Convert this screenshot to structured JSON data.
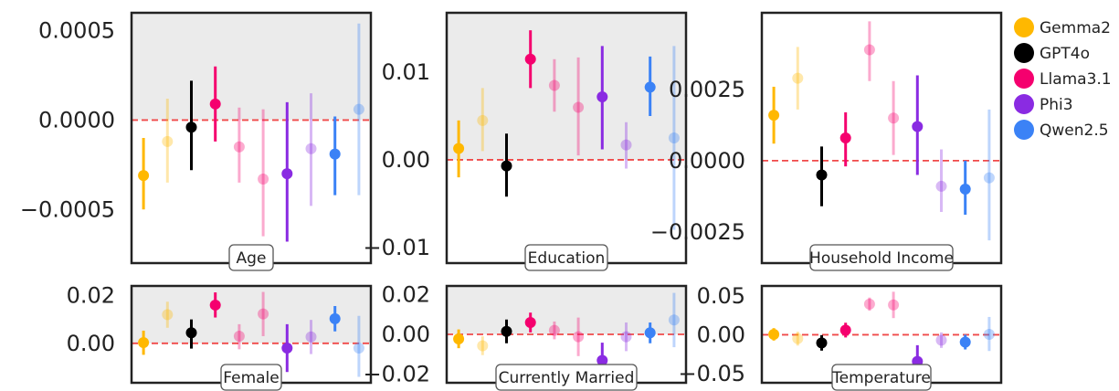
{
  "legend": [
    {
      "label": "Gemma2",
      "color": "#FFB800"
    },
    {
      "label": "GPT4o",
      "color": "#000000"
    },
    {
      "label": "Llama3.1",
      "color": "#F5006E"
    },
    {
      "label": "Phi3",
      "color": "#8A2BE2"
    },
    {
      "label": "Qwen2.5",
      "color": "#3B82F6"
    }
  ],
  "chart_data": [
    {
      "type": "scatter",
      "label": "Age",
      "ylim": [
        -0.0008,
        0.0006
      ],
      "yticks": [
        0.0005,
        0.0,
        -0.0005
      ],
      "ytick_labels": [
        "0.0005",
        "0.0000",
        "−0.0005"
      ],
      "shaded": true,
      "reference_line": 0,
      "points": [
        {
          "model": "Gemma2",
          "faded": false,
          "y": -0.00031,
          "lo": -0.0005,
          "hi": -0.0001
        },
        {
          "model": "Gemma2",
          "faded": true,
          "y": -0.00012,
          "lo": -0.00035,
          "hi": 0.00012
        },
        {
          "model": "GPT4o",
          "faded": false,
          "y": -4e-05,
          "lo": -0.00028,
          "hi": 0.00022
        },
        {
          "model": "Llama3.1",
          "faded": false,
          "y": 9e-05,
          "lo": -0.00012,
          "hi": 0.0003
        },
        {
          "model": "Llama3.1",
          "faded": true,
          "y": -0.00015,
          "lo": -0.00035,
          "hi": 7e-05
        },
        {
          "model": "Llama3.1",
          "faded": true,
          "y": -0.00033,
          "lo": -0.00065,
          "hi": 6e-05
        },
        {
          "model": "Phi3",
          "faded": false,
          "y": -0.0003,
          "lo": -0.00068,
          "hi": 0.0001
        },
        {
          "model": "Phi3",
          "faded": true,
          "y": -0.00016,
          "lo": -0.00048,
          "hi": 0.00015
        },
        {
          "model": "Qwen2.5",
          "faded": false,
          "y": -0.00019,
          "lo": -0.00042,
          "hi": 2e-05
        },
        {
          "model": "Qwen2.5",
          "faded": true,
          "y": 6e-05,
          "lo": -0.00042,
          "hi": 0.00054
        }
      ]
    },
    {
      "type": "scatter",
      "label": "Education",
      "ylim": [
        -0.0118,
        0.0168
      ],
      "yticks": [
        0.01,
        0.0,
        -0.01
      ],
      "ytick_labels": [
        "0.01",
        "0.00",
        "−0.01"
      ],
      "shaded": true,
      "reference_line": 0,
      "points": [
        {
          "model": "Gemma2",
          "faded": false,
          "y": 0.0013,
          "lo": -0.002,
          "hi": 0.0045
        },
        {
          "model": "Gemma2",
          "faded": true,
          "y": 0.0045,
          "lo": 0.001,
          "hi": 0.0082
        },
        {
          "model": "GPT4o",
          "faded": false,
          "y": -0.0007,
          "lo": -0.0042,
          "hi": 0.003
        },
        {
          "model": "Llama3.1",
          "faded": false,
          "y": 0.0115,
          "lo": 0.0082,
          "hi": 0.0148
        },
        {
          "model": "Llama3.1",
          "faded": true,
          "y": 0.0085,
          "lo": 0.0055,
          "hi": 0.0115
        },
        {
          "model": "Llama3.1",
          "faded": true,
          "y": 0.006,
          "lo": 0.0005,
          "hi": 0.0117
        },
        {
          "model": "Phi3",
          "faded": false,
          "y": 0.0072,
          "lo": 0.0012,
          "hi": 0.013
        },
        {
          "model": "Phi3",
          "faded": true,
          "y": 0.0017,
          "lo": -0.001,
          "hi": 0.0043
        },
        {
          "model": "Qwen2.5",
          "faded": false,
          "y": 0.0083,
          "lo": 0.005,
          "hi": 0.0118
        },
        {
          "model": "Qwen2.5",
          "faded": true,
          "y": 0.0025,
          "lo": -0.008,
          "hi": 0.013
        }
      ]
    },
    {
      "type": "scatter",
      "label": "Household Income",
      "ylim": [
        -0.0036,
        0.0052
      ],
      "yticks": [
        0.0025,
        0.0,
        -0.0025
      ],
      "ytick_labels": [
        "0.0025",
        "0.0000",
        "−0.0025"
      ],
      "shaded": false,
      "reference_line": 0,
      "points": [
        {
          "model": "Gemma2",
          "faded": false,
          "y": 0.0016,
          "lo": 0.0006,
          "hi": 0.0026
        },
        {
          "model": "Gemma2",
          "faded": true,
          "y": 0.0029,
          "lo": 0.0018,
          "hi": 0.004
        },
        {
          "model": "GPT4o",
          "faded": false,
          "y": -0.0005,
          "lo": -0.0016,
          "hi": 0.0005
        },
        {
          "model": "Llama3.1",
          "faded": false,
          "y": 0.0008,
          "lo": -0.0002,
          "hi": 0.0017
        },
        {
          "model": "Llama3.1",
          "faded": true,
          "y": 0.0039,
          "lo": 0.0028,
          "hi": 0.0049
        },
        {
          "model": "Llama3.1",
          "faded": true,
          "y": 0.0015,
          "lo": 0.0002,
          "hi": 0.0028
        },
        {
          "model": "Phi3",
          "faded": false,
          "y": 0.0012,
          "lo": -0.0005,
          "hi": 0.003
        },
        {
          "model": "Phi3",
          "faded": true,
          "y": -0.0009,
          "lo": -0.0018,
          "hi": 0.0004
        },
        {
          "model": "Qwen2.5",
          "faded": false,
          "y": -0.001,
          "lo": -0.0019,
          "hi": 0.0
        },
        {
          "model": "Qwen2.5",
          "faded": true,
          "y": -0.0006,
          "lo": -0.0028,
          "hi": 0.0018
        }
      ]
    },
    {
      "type": "scatter",
      "label": "Female",
      "ylim": [
        -0.0165,
        0.024
      ],
      "yticks": [
        0.02,
        0.0
      ],
      "ytick_labels": [
        "0.02",
        "0.00"
      ],
      "shaded": true,
      "reference_line": 0,
      "points": [
        {
          "model": "Gemma2",
          "faded": false,
          "y": 0.0003,
          "lo": -0.0048,
          "hi": 0.0053
        },
        {
          "model": "Gemma2",
          "faded": true,
          "y": 0.012,
          "lo": 0.0065,
          "hi": 0.0174
        },
        {
          "model": "GPT4o",
          "faded": false,
          "y": 0.0044,
          "lo": -0.0022,
          "hi": 0.01
        },
        {
          "model": "Llama3.1",
          "faded": false,
          "y": 0.016,
          "lo": 0.0108,
          "hi": 0.0213
        },
        {
          "model": "Llama3.1",
          "faded": true,
          "y": 0.003,
          "lo": -0.0025,
          "hi": 0.008
        },
        {
          "model": "Llama3.1",
          "faded": true,
          "y": 0.0123,
          "lo": 0.003,
          "hi": 0.0215
        },
        {
          "model": "Phi3",
          "faded": false,
          "y": -0.002,
          "lo": -0.012,
          "hi": 0.008
        },
        {
          "model": "Phi3",
          "faded": true,
          "y": 0.0027,
          "lo": -0.0045,
          "hi": 0.0098
        },
        {
          "model": "Qwen2.5",
          "faded": false,
          "y": 0.0103,
          "lo": 0.005,
          "hi": 0.0156
        },
        {
          "model": "Qwen2.5",
          "faded": true,
          "y": -0.002,
          "lo": -0.014,
          "hi": 0.0115
        }
      ]
    },
    {
      "type": "scatter",
      "label": "Currently Married",
      "ylim": [
        -0.0245,
        0.0245
      ],
      "yticks": [
        0.02,
        0.0,
        -0.02
      ],
      "ytick_labels": [
        "0.02",
        "0.00",
        "−0.02"
      ],
      "shaded": true,
      "reference_line": 0,
      "points": [
        {
          "model": "Gemma2",
          "faded": false,
          "y": -0.0023,
          "lo": -0.007,
          "hi": 0.0025
        },
        {
          "model": "Gemma2",
          "faded": true,
          "y": -0.0058,
          "lo": -0.0105,
          "hi": -0.001
        },
        {
          "model": "GPT4o",
          "faded": false,
          "y": 0.0015,
          "lo": -0.0045,
          "hi": 0.0075
        },
        {
          "model": "Llama3.1",
          "faded": false,
          "y": 0.006,
          "lo": 0.001,
          "hi": 0.011
        },
        {
          "model": "Llama3.1",
          "faded": true,
          "y": 0.002,
          "lo": -0.0025,
          "hi": 0.0065
        },
        {
          "model": "Llama3.1",
          "faded": true,
          "y": -0.0012,
          "lo": -0.011,
          "hi": 0.0085
        },
        {
          "model": "Phi3",
          "faded": false,
          "y": -0.0132,
          "lo": -0.0222,
          "hi": -0.0042
        },
        {
          "model": "Phi3",
          "faded": true,
          "y": -0.0012,
          "lo": -0.0085,
          "hi": 0.006
        },
        {
          "model": "Qwen2.5",
          "faded": false,
          "y": 0.0008,
          "lo": -0.0045,
          "hi": 0.006
        },
        {
          "model": "Qwen2.5",
          "faded": true,
          "y": 0.0073,
          "lo": -0.0065,
          "hi": 0.021
        }
      ]
    },
    {
      "type": "scatter",
      "label": "Temperature",
      "ylim": [
        -0.062,
        0.063
      ],
      "yticks": [
        0.05,
        0.0,
        -0.05
      ],
      "ytick_labels": [
        "0.05",
        "0.00",
        "−0.05"
      ],
      "shaded": false,
      "reference_line": 0,
      "points": [
        {
          "model": "Gemma2",
          "faded": false,
          "y": 0.0005,
          "lo": -0.0075,
          "hi": 0.0085
        },
        {
          "model": "Gemma2",
          "faded": true,
          "y": -0.005,
          "lo": -0.014,
          "hi": 0.004
        },
        {
          "model": "GPT4o",
          "faded": false,
          "y": -0.0105,
          "lo": -0.0205,
          "hi": -0.0005
        },
        {
          "model": "Llama3.1",
          "faded": false,
          "y": 0.006,
          "lo": -0.0035,
          "hi": 0.0155
        },
        {
          "model": "Llama3.1",
          "faded": true,
          "y": 0.0395,
          "lo": 0.031,
          "hi": 0.048
        },
        {
          "model": "Llama3.1",
          "faded": true,
          "y": 0.0385,
          "lo": 0.0215,
          "hi": 0.0555
        },
        {
          "model": "Phi3",
          "faded": false,
          "y": -0.0345,
          "lo": -0.056,
          "hi": -0.0135
        },
        {
          "model": "Phi3",
          "faded": true,
          "y": -0.007,
          "lo": -0.017,
          "hi": 0.003
        },
        {
          "model": "Qwen2.5",
          "faded": false,
          "y": -0.0095,
          "lo": -0.019,
          "hi": 0.0
        },
        {
          "model": "Qwen2.5",
          "faded": true,
          "y": 0.0005,
          "lo": -0.021,
          "hi": 0.023
        }
      ]
    }
  ]
}
